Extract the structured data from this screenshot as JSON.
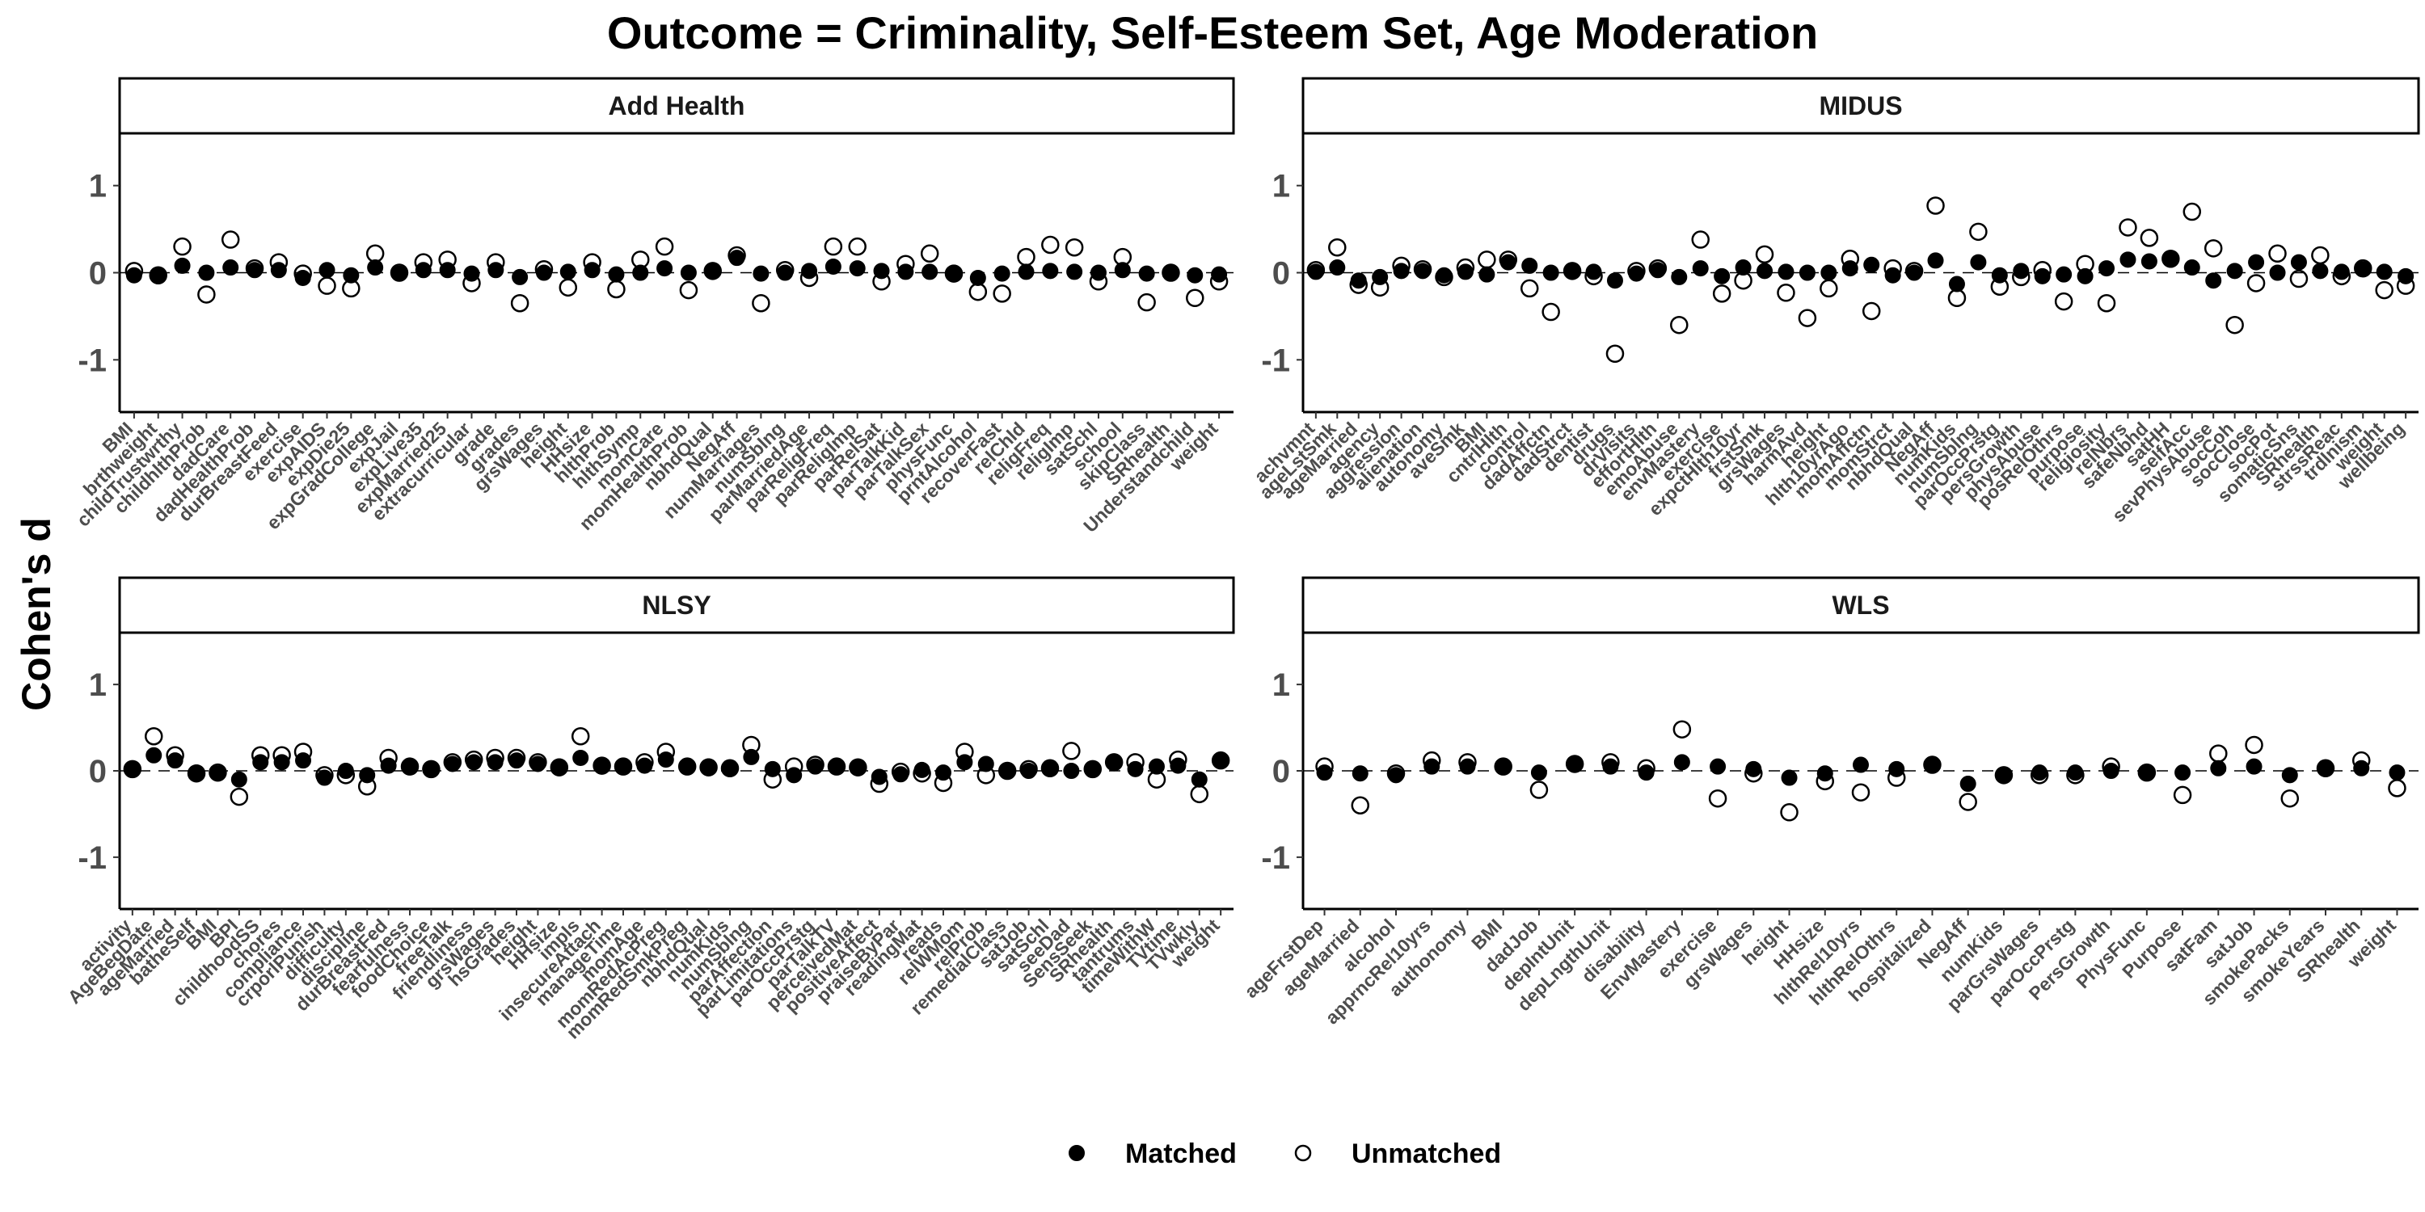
{
  "chart_data": {
    "type": "scatter",
    "title": "Outcome = Criminality, Self-Esteem Set, Age Moderation",
    "ylabel": "Cohen's d",
    "ylim": [
      -1.6,
      1.6
    ],
    "yticks": [
      -1,
      0,
      1
    ],
    "reference_line": 0,
    "legend": {
      "position": "bottom",
      "entries": [
        "Matched",
        "Unmatched"
      ]
    },
    "facets": [
      {
        "name": "Add Health",
        "categories": [
          "BMI",
          "brthweight",
          "childTrustwrthy",
          "childhlthProb",
          "dadCare",
          "dadHealthProb",
          "durBreastFeed",
          "exercise",
          "expAIDS",
          "expDie25",
          "expGradCollege",
          "expJail",
          "expLive35",
          "expMarried25",
          "extracurricular",
          "grade",
          "grades",
          "grsWages",
          "height",
          "HHsize",
          "hlthProb",
          "hlthSymp",
          "momCare",
          "momHealthProb",
          "nbhdQual",
          "NegAff",
          "numMarriages",
          "numSblng",
          "parMarriedAge",
          "parReligFreq",
          "parReligImp",
          "parRelSat",
          "parTalkKid",
          "parTalkSex",
          "physFunc",
          "prntAlcohol",
          "recoverFast",
          "relChld",
          "religFreq",
          "religImp",
          "satSchl",
          "school",
          "skipClass",
          "SRhealth",
          "Understandchild",
          "weight"
        ],
        "series": [
          {
            "name": "Matched",
            "values": [
              -0.03,
              -0.03,
              0.08,
              0.0,
              0.06,
              0.03,
              0.03,
              -0.06,
              0.03,
              -0.03,
              0.06,
              -0.01,
              0.03,
              0.03,
              -0.01,
              0.03,
              -0.05,
              0.0,
              0.01,
              0.03,
              -0.02,
              0.0,
              0.05,
              0.0,
              0.02,
              0.17,
              -0.01,
              0.0,
              0.02,
              0.07,
              0.05,
              0.02,
              0.01,
              0.01,
              0.0,
              -0.06,
              -0.01,
              0.01,
              0.02,
              0.01,
              0.0,
              0.03,
              -0.01,
              0.0,
              -0.03,
              -0.02
            ]
          },
          {
            "name": "Unmatched",
            "values": [
              0.02,
              -0.03,
              0.3,
              -0.25,
              0.38,
              0.05,
              0.12,
              -0.01,
              -0.15,
              -0.18,
              0.22,
              0.0,
              0.12,
              0.15,
              -0.12,
              0.12,
              -0.35,
              0.04,
              -0.17,
              0.12,
              -0.19,
              0.15,
              0.3,
              -0.2,
              0.02,
              0.2,
              -0.35,
              0.03,
              -0.06,
              0.3,
              0.3,
              -0.1,
              0.1,
              0.22,
              -0.01,
              -0.22,
              -0.24,
              0.18,
              0.32,
              0.29,
              -0.1,
              0.18,
              -0.34,
              0.0,
              -0.29,
              -0.1
            ]
          }
        ]
      },
      {
        "name": "MIDUS",
        "categories": [
          "achvmnt",
          "ageLstSmk",
          "ageMarried",
          "agency",
          "aggression",
          "alienation",
          "autonomy",
          "aveSmk",
          "BMI",
          "cntrlHlth",
          "control",
          "dadAffctn",
          "dadStrct",
          "dentist",
          "drugs",
          "drVisits",
          "effortHlth",
          "emoAbuse",
          "envMastery",
          "exercise",
          "expctHlth10yr",
          "frstSmk",
          "grsWages",
          "harmAvd",
          "height",
          "hlth10yrAgo",
          "momAffctn",
          "momStrct",
          "nbhdQual",
          "NegAff",
          "numKids",
          "numSblng",
          "parOccPrstg",
          "persGrowth",
          "physAbuse",
          "posRelOthrs",
          "purpose",
          "religiosity",
          "relNbrs",
          "safeNbhd",
          "satHH",
          "selfAcc",
          "sevPhysAbuse",
          "socCoh",
          "socClose",
          "socPot",
          "somaticSns",
          "SRhealth",
          "strssReac",
          "trdlnism",
          "weight",
          "wellbeing"
        ],
        "series": [
          {
            "name": "Matched",
            "values": [
              0.01,
              0.06,
              -0.09,
              -0.05,
              0.02,
              0.02,
              -0.03,
              0.01,
              -0.02,
              0.12,
              0.08,
              0.0,
              0.02,
              0.01,
              -0.09,
              -0.01,
              0.03,
              -0.05,
              0.05,
              -0.04,
              0.06,
              0.02,
              0.01,
              0.0,
              0.0,
              0.05,
              0.09,
              -0.03,
              0.0,
              0.14,
              -0.13,
              0.12,
              -0.03,
              0.02,
              -0.04,
              -0.02,
              -0.04,
              0.05,
              0.15,
              0.13,
              0.15,
              0.06,
              -0.09,
              0.02,
              0.12,
              0.0,
              0.12,
              0.02,
              0.01,
              0.04,
              0.01,
              -0.04
            ]
          },
          {
            "name": "Unmatched",
            "values": [
              0.03,
              0.29,
              -0.14,
              -0.17,
              0.08,
              0.04,
              -0.05,
              0.06,
              0.15,
              0.15,
              -0.18,
              -0.45,
              0.02,
              -0.04,
              -0.93,
              0.02,
              0.05,
              -0.6,
              0.38,
              -0.24,
              -0.09,
              0.21,
              -0.23,
              -0.52,
              -0.18,
              0.16,
              -0.44,
              0.05,
              0.02,
              0.77,
              -0.29,
              0.47,
              -0.16,
              -0.05,
              0.03,
              -0.33,
              0.1,
              -0.35,
              0.52,
              0.4,
              0.16,
              0.7,
              0.28,
              -0.6,
              -0.12,
              0.22,
              -0.07,
              0.2,
              -0.04,
              0.05,
              -0.2,
              -0.15
            ]
          }
        ]
      },
      {
        "name": "NLSY",
        "categories": [
          "activity",
          "AgeBegDate",
          "ageMarried",
          "batheSelf",
          "BMI",
          "BPI",
          "childhoodSS",
          "chores",
          "compliance",
          "crporlPunish",
          "difficulty",
          "discipline",
          "durBreastFed",
          "fearfulness",
          "foodChoice",
          "freeTalk",
          "friendliness",
          "grsWages",
          "hsGrades",
          "height",
          "HHsize",
          "impls",
          "insecureAttach",
          "manageTime",
          "momAge",
          "momRedAcPreg",
          "momRedSmkPreg",
          "nbhdQual",
          "numKids",
          "numSblng",
          "parAffection",
          "parLimitations",
          "parOccPrstg",
          "parTalkTV",
          "perceivedMat",
          "positiveAffect",
          "praiseByPar",
          "readingMat",
          "reads",
          "relWMom",
          "relProb",
          "remedialClass",
          "satJob",
          "satSchl",
          "seeDad",
          "SensSeek",
          "SRhealth",
          "tantrums",
          "timeWithW",
          "TVtime",
          "TVwkly",
          "weight"
        ],
        "series": [
          {
            "name": "Matched",
            "values": [
              0.02,
              0.18,
              0.12,
              -0.02,
              -0.03,
              -0.1,
              0.1,
              0.1,
              0.12,
              -0.08,
              0.0,
              -0.05,
              0.06,
              0.05,
              0.02,
              0.08,
              0.1,
              0.1,
              0.12,
              0.08,
              0.05,
              0.15,
              0.05,
              0.06,
              0.06,
              0.13,
              0.05,
              0.05,
              0.03,
              0.16,
              0.02,
              -0.05,
              0.05,
              0.05,
              0.04,
              -0.07,
              -0.04,
              0.01,
              -0.02,
              0.1,
              0.08,
              0.0,
              0.0,
              0.02,
              0.0,
              0.01,
              0.1,
              0.02,
              0.05,
              0.06,
              -0.1,
              0.12
            ]
          },
          {
            "name": "Unmatched",
            "values": [
              0.02,
              0.4,
              0.18,
              -0.03,
              -0.02,
              -0.3,
              0.18,
              0.18,
              0.22,
              -0.05,
              -0.05,
              -0.18,
              0.15,
              0.05,
              0.02,
              0.1,
              0.13,
              0.15,
              0.15,
              0.1,
              0.04,
              0.4,
              0.06,
              0.05,
              0.1,
              0.22,
              0.05,
              0.04,
              0.03,
              0.3,
              -0.1,
              0.05,
              0.07,
              0.05,
              0.04,
              -0.15,
              -0.01,
              -0.03,
              -0.14,
              0.22,
              -0.05,
              0.0,
              0.02,
              0.03,
              0.23,
              0.02,
              0.1,
              0.1,
              -0.1,
              0.13,
              -0.27,
              0.12
            ]
          }
        ]
      },
      {
        "name": "WLS",
        "categories": [
          "ageFrstDep",
          "ageMarried",
          "alcohol",
          "apprncRel10yrs",
          "authonomy",
          "BMI",
          "dadJob",
          "depIntUnit",
          "depLngthUnit",
          "disability",
          "EnvMastery",
          "exercise",
          "grsWages",
          "height",
          "HHsize",
          "hlthRel10yrs",
          "hlthRelOthrs",
          "hospitalized",
          "NegAff",
          "numKids",
          "parGrsWages",
          "parOccPrstg",
          "PersGrowth",
          "PhysFunc",
          "Purpose",
          "satFam",
          "satJob",
          "smokePacks",
          "smokeYears",
          "SRhealth",
          "weight"
        ],
        "series": [
          {
            "name": "Matched",
            "values": [
              -0.02,
              -0.03,
              -0.05,
              0.05,
              0.05,
              0.05,
              -0.02,
              0.08,
              0.05,
              -0.02,
              0.1,
              0.05,
              0.02,
              -0.08,
              -0.03,
              0.07,
              0.02,
              0.07,
              -0.15,
              -0.05,
              -0.02,
              -0.02,
              0.0,
              -0.02,
              -0.02,
              0.03,
              0.05,
              -0.05,
              0.03,
              0.03,
              -0.02
            ]
          },
          {
            "name": "Unmatched",
            "values": [
              0.05,
              -0.4,
              -0.03,
              0.12,
              0.1,
              0.05,
              -0.22,
              0.08,
              0.1,
              0.03,
              0.48,
              -0.32,
              -0.03,
              -0.48,
              -0.12,
              -0.25,
              -0.08,
              0.07,
              -0.36,
              -0.05,
              -0.05,
              -0.05,
              0.05,
              -0.02,
              -0.28,
              0.2,
              0.3,
              -0.32,
              0.03,
              0.12,
              -0.2
            ]
          }
        ]
      }
    ]
  }
}
